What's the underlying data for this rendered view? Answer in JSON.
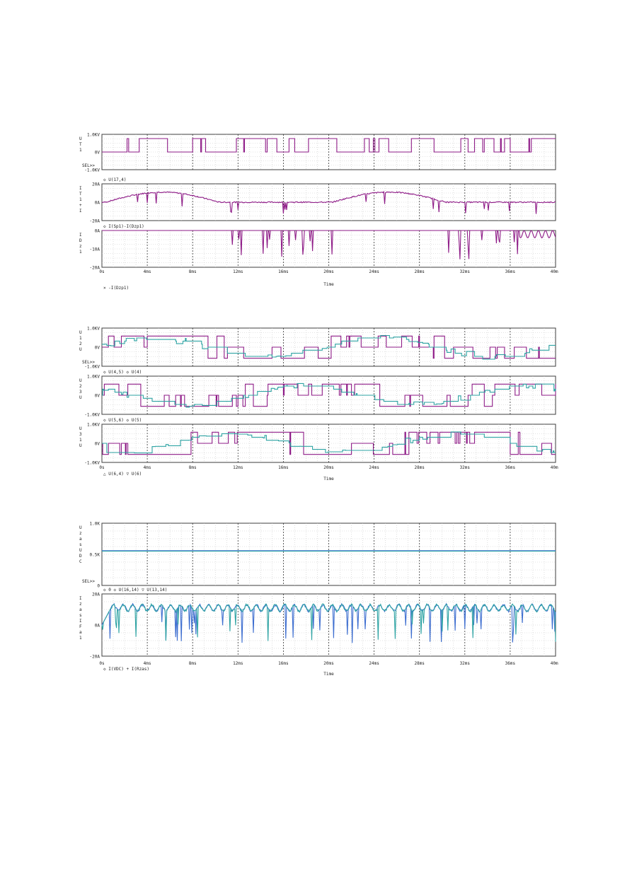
{
  "colors": {
    "purple": "#8e1b87",
    "teal": "#2ea3a3",
    "blue": "#3f6fd0",
    "frame": "#3d3d3d",
    "grid": "#9a9a9a",
    "text": "#222222"
  },
  "figures": [
    {
      "time_label": "Time",
      "x_ticks": [
        "0s",
        "4ms",
        "8ms",
        "12ms",
        "16ms",
        "20ms",
        "24ms",
        "28ms",
        "32ms",
        "36ms",
        "40ms"
      ],
      "bottom_legend": "× -I(Dzp1)",
      "panels": [
        {
          "ylabel": "U T 1",
          "y_ticks": [
            "1.0KV",
            "0V",
            "-1.0KV"
          ],
          "ylim": [
            -1000,
            1000
          ],
          "sel": "SEL>>",
          "legend": "",
          "traces": [
            {
              "color": "purple",
              "kind": "pulse",
              "seed": 3,
              "hi": 760,
              "lo": 0,
              "density": 0.55
            }
          ]
        },
        {
          "ylabel": "I T 1 + I",
          "y_ticks": [
            "20A",
            "0A",
            "-20A"
          ],
          "ylim": [
            -20,
            20
          ],
          "sel": "",
          "legend": "◇ U(17,4)",
          "traces": [
            {
              "color": "purple",
              "kind": "current",
              "seed": 7
            }
          ]
        },
        {
          "ylabel": "I D z 1",
          "y_ticks": [
            "0A",
            "-10A",
            "-20A"
          ],
          "ylim": [
            -20,
            0
          ],
          "sel": "",
          "legend": "◇ I(Sp1)-I(Dzp1)",
          "traces": [
            {
              "color": "purple",
              "kind": "diode",
              "seed": 11
            }
          ]
        }
      ]
    },
    {
      "time_label": "Time",
      "x_ticks": [
        "0s",
        "4ms",
        "8ms",
        "12ms",
        "16ms",
        "20ms",
        "24ms",
        "28ms",
        "32ms",
        "36ms",
        "40ms"
      ],
      "bottom_legend": "△ U(6,4)  ▽ U(6)",
      "panels": [
        {
          "ylabel": "U 1 2 U",
          "y_ticks": [
            "1.0KV",
            "0V",
            "-1.0KV"
          ],
          "ylim": [
            -1000,
            1000
          ],
          "sel": "SEL>>",
          "legend": "",
          "traces": [
            {
              "color": "purple",
              "kind": "bipolar",
              "seed": 21,
              "phase": 0
            },
            {
              "color": "teal",
              "kind": "stair",
              "seed": 22,
              "phase": 0
            }
          ]
        },
        {
          "ylabel": "U 2 3 U",
          "y_ticks": [
            "1.0KV",
            "0V",
            "-1.0KV"
          ],
          "ylim": [
            -1000,
            1000
          ],
          "sel": "",
          "legend": "◇ U(4,5)  ◇ U(4)",
          "traces": [
            {
              "color": "purple",
              "kind": "bipolar",
              "seed": 31,
              "phase": 2.09
            },
            {
              "color": "teal",
              "kind": "stair",
              "seed": 32,
              "phase": 2.09
            }
          ]
        },
        {
          "ylabel": "U 3 1 U",
          "y_ticks": [
            "1.0KV",
            "0V",
            "-1.0KV"
          ],
          "ylim": [
            -1000,
            1000
          ],
          "sel": "",
          "legend": "◇ U(5,6)  ◇ U(5)",
          "traces": [
            {
              "color": "purple",
              "kind": "bipolar",
              "seed": 41,
              "phase": 4.19
            },
            {
              "color": "teal",
              "kind": "stair",
              "seed": 42,
              "phase": 4.19
            }
          ]
        }
      ]
    },
    {
      "time_label": "Time",
      "x_ticks": [
        "0s",
        "4ms",
        "8ms",
        "12ms",
        "16ms",
        "20ms",
        "24ms",
        "28ms",
        "32ms",
        "36ms",
        "40ms"
      ],
      "bottom_legend": "◇ I(VDC)  + I(Rzas)",
      "panels": [
        {
          "ylabel": "U z a s U D C",
          "y_ticks": [
            "1.0K",
            "0.5K",
            "0"
          ],
          "ylim": [
            0,
            1000
          ],
          "sel": "SEL>>",
          "legend": "",
          "traces": [
            {
              "color": "blue",
              "kind": "flat",
              "value": 560
            },
            {
              "color": "teal",
              "kind": "flat",
              "value": 550
            }
          ]
        },
        {
          "ylabel": "I z a s I F a 1",
          "y_ticks": [
            "20A",
            "0A",
            "-20A"
          ],
          "ylim": [
            -20,
            20
          ],
          "sel": "",
          "legend": "◇ 0  ◇ U(16,14)  ▽ U(13,14)",
          "traces": [
            {
              "color": "blue",
              "kind": "spikes",
              "seed": 51
            },
            {
              "color": "teal",
              "kind": "spikes",
              "seed": 52
            }
          ]
        }
      ]
    }
  ]
}
